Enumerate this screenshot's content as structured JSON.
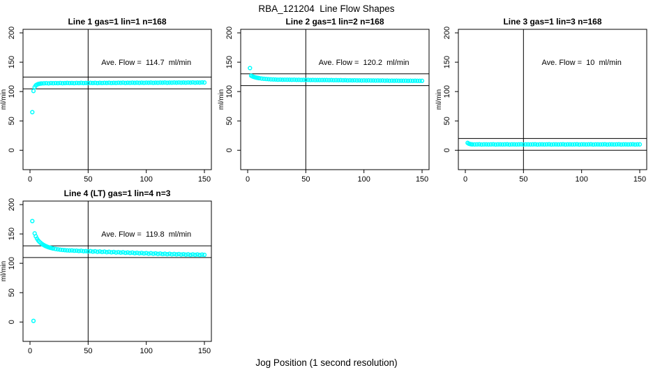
{
  "figure": {
    "title": "RBA_121204  Line Flow Shapes",
    "xlabel": "Jog Position (1 second resolution)",
    "background_color": "#ffffff",
    "point_color": "#00ffff",
    "line_color": "#000000",
    "ylabel": "ml/min"
  },
  "chart_data": [
    {
      "type": "scatter",
      "title": "Line 1 gas=1 lin=1 n=168",
      "annotation": "Ave. Flow =  114.7  ml/min",
      "ave_flow": 114.7,
      "annotation_at": {
        "x": 100,
        "y": 150
      },
      "ylabel": "ml/min",
      "xticks": [
        0,
        50,
        100,
        150
      ],
      "yticks": [
        0,
        50,
        100,
        150,
        200
      ],
      "xlim": [
        -6,
        156
      ],
      "ylim": [
        -33,
        206
      ],
      "grid": false,
      "vline_x": 50,
      "hlines": [
        124.7,
        104.7
      ],
      "points": [
        [
          2,
          65
        ],
        [
          3,
          101
        ],
        [
          4,
          107.5
        ],
        [
          5,
          110.5
        ],
        [
          6,
          112
        ],
        [
          7,
          112.8
        ],
        [
          8,
          113.3
        ],
        [
          9,
          113.7
        ],
        [
          10,
          113.9
        ],
        [
          12,
          114.1
        ],
        [
          14,
          114.3
        ],
        [
          16,
          114.0
        ],
        [
          18,
          114.4
        ],
        [
          20,
          114.2
        ],
        [
          22,
          114.5
        ],
        [
          24,
          114.3
        ],
        [
          26,
          114.6
        ],
        [
          28,
          114.2
        ],
        [
          30,
          114.5
        ],
        [
          32,
          114.7
        ],
        [
          34,
          114.4
        ],
        [
          36,
          114.6
        ],
        [
          38,
          114.3
        ],
        [
          40,
          114.7
        ],
        [
          42,
          114.5
        ],
        [
          44,
          114.8
        ],
        [
          46,
          114.4
        ],
        [
          48,
          114.7
        ],
        [
          50,
          114.5
        ],
        [
          52,
          114.8
        ],
        [
          54,
          114.6
        ],
        [
          56,
          114.9
        ],
        [
          58,
          114.5
        ],
        [
          60,
          114.8
        ],
        [
          62,
          114.6
        ],
        [
          64,
          114.9
        ],
        [
          66,
          114.7
        ],
        [
          68,
          115.0
        ],
        [
          70,
          114.6
        ],
        [
          72,
          114.9
        ],
        [
          74,
          114.7
        ],
        [
          76,
          115.0
        ],
        [
          78,
          114.8
        ],
        [
          80,
          115.1
        ],
        [
          82,
          114.7
        ],
        [
          84,
          115.0
        ],
        [
          86,
          114.8
        ],
        [
          88,
          115.1
        ],
        [
          90,
          114.9
        ],
        [
          92,
          115.2
        ],
        [
          94,
          114.8
        ],
        [
          96,
          115.1
        ],
        [
          98,
          114.9
        ],
        [
          100,
          115.2
        ],
        [
          102,
          115.0
        ],
        [
          104,
          115.3
        ],
        [
          106,
          114.9
        ],
        [
          108,
          115.2
        ],
        [
          110,
          115.0
        ],
        [
          112,
          115.3
        ],
        [
          114,
          115.1
        ],
        [
          116,
          115.4
        ],
        [
          118,
          115.0
        ],
        [
          120,
          115.3
        ],
        [
          122,
          115.1
        ],
        [
          124,
          115.4
        ],
        [
          126,
          115.2
        ],
        [
          128,
          115.5
        ],
        [
          130,
          115.1
        ],
        [
          132,
          115.4
        ],
        [
          134,
          115.2
        ],
        [
          136,
          115.5
        ],
        [
          138,
          115.3
        ],
        [
          140,
          115.6
        ],
        [
          142,
          115.2
        ],
        [
          144,
          115.5
        ],
        [
          146,
          115.3
        ],
        [
          148,
          115.6
        ],
        [
          150,
          115.4
        ]
      ]
    },
    {
      "type": "scatter",
      "title": "Line 2 gas=1 lin=2 n=168",
      "annotation": "Ave. Flow =  120.2  ml/min",
      "ave_flow": 120.2,
      "annotation_at": {
        "x": 100,
        "y": 150
      },
      "ylabel": "ml/min",
      "xticks": [
        0,
        50,
        100,
        150
      ],
      "yticks": [
        0,
        50,
        100,
        150,
        200
      ],
      "xlim": [
        -6,
        156
      ],
      "ylim": [
        -33,
        206
      ],
      "grid": false,
      "vline_x": 50,
      "hlines": [
        130.2,
        110.2
      ],
      "points": [
        [
          2,
          140
        ],
        [
          3,
          127
        ],
        [
          4,
          126
        ],
        [
          5,
          125.2
        ],
        [
          6,
          124.5
        ],
        [
          7,
          124
        ],
        [
          8,
          123.5
        ],
        [
          9,
          123.1
        ],
        [
          10,
          122.8
        ],
        [
          12,
          122.2
        ],
        [
          14,
          121.7
        ],
        [
          16,
          121.4
        ],
        [
          18,
          121.1
        ],
        [
          20,
          120.8
        ],
        [
          22,
          120.6
        ],
        [
          24,
          120.5
        ],
        [
          26,
          120.3
        ],
        [
          28,
          120.4
        ],
        [
          30,
          120.2
        ],
        [
          32,
          120.3
        ],
        [
          34,
          120.1
        ],
        [
          36,
          120.2
        ],
        [
          38,
          120.0
        ],
        [
          40,
          120.1
        ],
        [
          42,
          119.9
        ],
        [
          44,
          120.0
        ],
        [
          46,
          119.8
        ],
        [
          48,
          119.9
        ],
        [
          50,
          119.8
        ],
        [
          52,
          119.9
        ],
        [
          54,
          119.7
        ],
        [
          56,
          119.8
        ],
        [
          58,
          119.6
        ],
        [
          60,
          119.7
        ],
        [
          62,
          119.5
        ],
        [
          64,
          119.6
        ],
        [
          66,
          119.5
        ],
        [
          68,
          119.6
        ],
        [
          70,
          119.4
        ],
        [
          72,
          119.5
        ],
        [
          74,
          119.3
        ],
        [
          76,
          119.4
        ],
        [
          78,
          119.3
        ],
        [
          80,
          119.4
        ],
        [
          82,
          119.2
        ],
        [
          84,
          119.3
        ],
        [
          86,
          119.1
        ],
        [
          88,
          119.2
        ],
        [
          90,
          119.1
        ],
        [
          92,
          119.2
        ],
        [
          94,
          119.0
        ],
        [
          96,
          119.1
        ],
        [
          98,
          118.9
        ],
        [
          100,
          119.0
        ],
        [
          102,
          118.9
        ],
        [
          104,
          119.0
        ],
        [
          106,
          118.8
        ],
        [
          108,
          118.9
        ],
        [
          110,
          118.7
        ],
        [
          112,
          118.8
        ],
        [
          114,
          118.7
        ],
        [
          116,
          118.8
        ],
        [
          118,
          118.6
        ],
        [
          120,
          118.7
        ],
        [
          122,
          118.5
        ],
        [
          124,
          118.6
        ],
        [
          126,
          118.5
        ],
        [
          128,
          118.6
        ],
        [
          130,
          118.4
        ],
        [
          132,
          118.5
        ],
        [
          134,
          118.4
        ],
        [
          136,
          118.5
        ],
        [
          138,
          118.3
        ],
        [
          140,
          118.4
        ],
        [
          142,
          118.3
        ],
        [
          144,
          118.4
        ],
        [
          146,
          118.2
        ],
        [
          148,
          118.3
        ],
        [
          150,
          118.2
        ]
      ]
    },
    {
      "type": "scatter",
      "title": "Line 3 gas=1 lin=3 n=168",
      "annotation": "Ave. Flow =  10  ml/min",
      "ave_flow": 10,
      "annotation_at": {
        "x": 100,
        "y": 150
      },
      "ylabel": "ml/min",
      "xticks": [
        0,
        50,
        100,
        150
      ],
      "yticks": [
        0,
        50,
        100,
        150,
        200
      ],
      "xlim": [
        -6,
        156
      ],
      "ylim": [
        -33,
        206
      ],
      "grid": false,
      "vline_x": 50,
      "hlines": [
        20,
        0
      ],
      "points": [
        [
          2,
          12.5
        ],
        [
          3,
          11.2
        ],
        [
          4,
          10.6
        ],
        [
          5,
          10.3
        ],
        [
          6,
          10.1
        ],
        [
          8,
          9.9
        ],
        [
          10,
          10.0
        ],
        [
          12,
          10.2
        ],
        [
          14,
          9.8
        ],
        [
          16,
          10.0
        ],
        [
          18,
          10.1
        ],
        [
          20,
          9.9
        ],
        [
          22,
          10.0
        ],
        [
          24,
          10.2
        ],
        [
          26,
          9.8
        ],
        [
          28,
          10.0
        ],
        [
          30,
          10.1
        ],
        [
          32,
          9.9
        ],
        [
          34,
          10.0
        ],
        [
          36,
          10.2
        ],
        [
          38,
          9.8
        ],
        [
          40,
          10.0
        ],
        [
          42,
          10.1
        ],
        [
          44,
          9.9
        ],
        [
          46,
          10.0
        ],
        [
          48,
          10.2
        ],
        [
          50,
          9.8
        ],
        [
          52,
          10.0
        ],
        [
          54,
          10.1
        ],
        [
          56,
          9.9
        ],
        [
          58,
          10.0
        ],
        [
          60,
          10.2
        ],
        [
          62,
          9.8
        ],
        [
          64,
          10.0
        ],
        [
          66,
          10.1
        ],
        [
          68,
          9.9
        ],
        [
          70,
          10.0
        ],
        [
          72,
          10.2
        ],
        [
          74,
          9.8
        ],
        [
          76,
          10.0
        ],
        [
          78,
          10.1
        ],
        [
          80,
          9.9
        ],
        [
          82,
          10.0
        ],
        [
          84,
          10.2
        ],
        [
          86,
          9.8
        ],
        [
          88,
          10.0
        ],
        [
          90,
          10.1
        ],
        [
          92,
          9.9
        ],
        [
          94,
          10.0
        ],
        [
          96,
          10.2
        ],
        [
          98,
          9.8
        ],
        [
          100,
          10.0
        ],
        [
          102,
          10.1
        ],
        [
          104,
          9.9
        ],
        [
          106,
          10.0
        ],
        [
          108,
          10.2
        ],
        [
          110,
          9.8
        ],
        [
          112,
          10.0
        ],
        [
          114,
          10.1
        ],
        [
          116,
          9.9
        ],
        [
          118,
          10.0
        ],
        [
          120,
          10.2
        ],
        [
          122,
          9.8
        ],
        [
          124,
          10.0
        ],
        [
          126,
          10.1
        ],
        [
          128,
          9.9
        ],
        [
          130,
          10.0
        ],
        [
          132,
          10.2
        ],
        [
          134,
          9.8
        ],
        [
          136,
          10.0
        ],
        [
          138,
          10.1
        ],
        [
          140,
          9.9
        ],
        [
          142,
          10.0
        ],
        [
          144,
          10.2
        ],
        [
          146,
          9.8
        ],
        [
          148,
          10.0
        ],
        [
          150,
          10.0
        ]
      ]
    },
    {
      "type": "scatter",
      "title": "Line 4 (LT) gas=1 lin=4 n=3",
      "annotation": "Ave. Flow =  119.8  ml/min",
      "ave_flow": 119.8,
      "annotation_at": {
        "x": 100,
        "y": 150
      },
      "ylabel": "ml/min",
      "xticks": [
        0,
        50,
        100,
        150
      ],
      "yticks": [
        0,
        50,
        100,
        150,
        200
      ],
      "xlim": [
        -6,
        156
      ],
      "ylim": [
        -33,
        206
      ],
      "grid": false,
      "vline_x": 50,
      "hlines": [
        129.8,
        109.8
      ],
      "points": [
        [
          2,
          172
        ],
        [
          3,
          2
        ],
        [
          4,
          151
        ],
        [
          5,
          146
        ],
        [
          6,
          142
        ],
        [
          7,
          139
        ],
        [
          8,
          136.8
        ],
        [
          9,
          135
        ],
        [
          10,
          133.4
        ],
        [
          11,
          132
        ],
        [
          12,
          130.8
        ],
        [
          13,
          129.8
        ],
        [
          14,
          128.9
        ],
        [
          15,
          128.1
        ],
        [
          16,
          127.4
        ],
        [
          17,
          126.8
        ],
        [
          18,
          126.2
        ],
        [
          19,
          125.7
        ],
        [
          20,
          125.2
        ],
        [
          22,
          124.4
        ],
        [
          24,
          123.8
        ],
        [
          26,
          123.2
        ],
        [
          28,
          122.8
        ],
        [
          30,
          122.4
        ],
        [
          32,
          122.1
        ],
        [
          34,
          121.8
        ],
        [
          36,
          121.9
        ],
        [
          38,
          121.4
        ],
        [
          40,
          121.6
        ],
        [
          42,
          121.0
        ],
        [
          44,
          121.3
        ],
        [
          46,
          120.6
        ],
        [
          48,
          120.9
        ],
        [
          50,
          120.3
        ],
        [
          52,
          120.8
        ],
        [
          54,
          119.9
        ],
        [
          56,
          120.5
        ],
        [
          58,
          119.6
        ],
        [
          60,
          120.2
        ],
        [
          62,
          119.3
        ],
        [
          64,
          119.9
        ],
        [
          66,
          119.0
        ],
        [
          68,
          119.6
        ],
        [
          70,
          118.7
        ],
        [
          72,
          119.3
        ],
        [
          74,
          118.4
        ],
        [
          76,
          119.0
        ],
        [
          78,
          118.2
        ],
        [
          80,
          118.8
        ],
        [
          82,
          117.9
        ],
        [
          84,
          118.5
        ],
        [
          86,
          117.6
        ],
        [
          88,
          118.2
        ],
        [
          90,
          117.3
        ],
        [
          92,
          117.9
        ],
        [
          94,
          117.0
        ],
        [
          96,
          117.7
        ],
        [
          98,
          116.8
        ],
        [
          100,
          117.4
        ],
        [
          102,
          116.5
        ],
        [
          104,
          117.2
        ],
        [
          106,
          116.3
        ],
        [
          108,
          116.9
        ],
        [
          110,
          116.0
        ],
        [
          112,
          116.7
        ],
        [
          114,
          115.8
        ],
        [
          116,
          116.4
        ],
        [
          118,
          115.5
        ],
        [
          120,
          116.2
        ],
        [
          122,
          115.3
        ],
        [
          124,
          115.9
        ],
        [
          126,
          115.1
        ],
        [
          128,
          115.7
        ],
        [
          130,
          114.9
        ],
        [
          132,
          115.5
        ],
        [
          134,
          114.7
        ],
        [
          136,
          115.3
        ],
        [
          138,
          114.5
        ],
        [
          140,
          115.1
        ],
        [
          142,
          114.4
        ],
        [
          144,
          115.0
        ],
        [
          146,
          114.2
        ],
        [
          148,
          114.8
        ],
        [
          150,
          114.5
        ]
      ]
    }
  ]
}
